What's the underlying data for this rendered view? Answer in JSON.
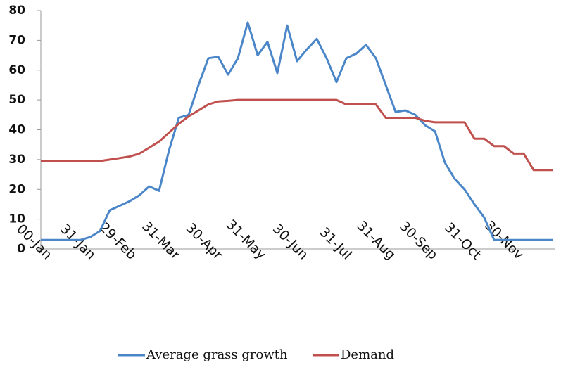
{
  "chart_data": {
    "type": "line",
    "x": [
      0,
      7,
      14,
      21,
      28,
      35,
      42,
      49,
      56,
      63,
      70,
      77,
      84,
      91,
      98,
      105,
      112,
      119,
      126,
      133,
      140,
      147,
      154,
      161,
      168,
      175,
      182,
      189,
      196,
      203,
      210,
      217,
      224,
      231,
      238,
      245,
      252,
      259,
      266,
      273,
      280,
      287,
      294,
      301,
      308,
      315,
      322,
      329,
      336,
      343,
      350,
      357,
      364
    ],
    "series": [
      {
        "name": "Average grass growth",
        "color": "#4a86c8",
        "values": [
          3,
          3,
          3,
          3,
          3,
          4,
          6,
          13,
          14.5,
          16,
          18,
          21,
          19.5,
          33,
          44,
          45,
          55,
          64,
          64.5,
          58.5,
          64,
          76,
          65,
          69.5,
          59,
          75,
          63,
          67,
          70.5,
          64,
          56,
          64,
          65.5,
          68.5,
          64,
          55,
          46,
          46.5,
          45,
          41.5,
          39.5,
          29,
          23.5,
          20,
          15,
          10.5,
          3,
          3,
          3,
          3,
          3,
          3,
          3
        ]
      },
      {
        "name": "Demand",
        "color": "#c0504d",
        "values": [
          29.5,
          29.5,
          29.5,
          29.5,
          29.5,
          29.5,
          29.5,
          30,
          30.5,
          31,
          32,
          34,
          36,
          39,
          42,
          44.5,
          46.5,
          48.5,
          49.5,
          49.7,
          50,
          50,
          50,
          50,
          50,
          50,
          50,
          50,
          50,
          50,
          50,
          48.5,
          48.5,
          48.5,
          48.5,
          44,
          44,
          44,
          44,
          43,
          42.5,
          42.5,
          42.5,
          42.5,
          37,
          37,
          34.5,
          34.5,
          32,
          32,
          26.5,
          26.5,
          26.5
        ]
      }
    ],
    "xlim": [
      0,
      365
    ],
    "xticks": [
      {
        "value": 0,
        "label": "00-Jan"
      },
      {
        "value": 31,
        "label": "31-Jan"
      },
      {
        "value": 60,
        "label": "29-Feb"
      },
      {
        "value": 91,
        "label": "31-Mar"
      },
      {
        "value": 121,
        "label": "30-Apr"
      },
      {
        "value": 152,
        "label": "31-May"
      },
      {
        "value": 182,
        "label": "30-Jun"
      },
      {
        "value": 213,
        "label": "31-Jul"
      },
      {
        "value": 244,
        "label": "31-Aug"
      },
      {
        "value": 274,
        "label": "30-Sep"
      },
      {
        "value": 305,
        "label": "31-Oct"
      },
      {
        "value": 335,
        "label": "30-Nov"
      }
    ],
    "ylim": [
      0,
      80
    ],
    "yticks": [
      0,
      10,
      20,
      30,
      40,
      50,
      60,
      70,
      80
    ],
    "grid": false,
    "legend": "bottom"
  }
}
